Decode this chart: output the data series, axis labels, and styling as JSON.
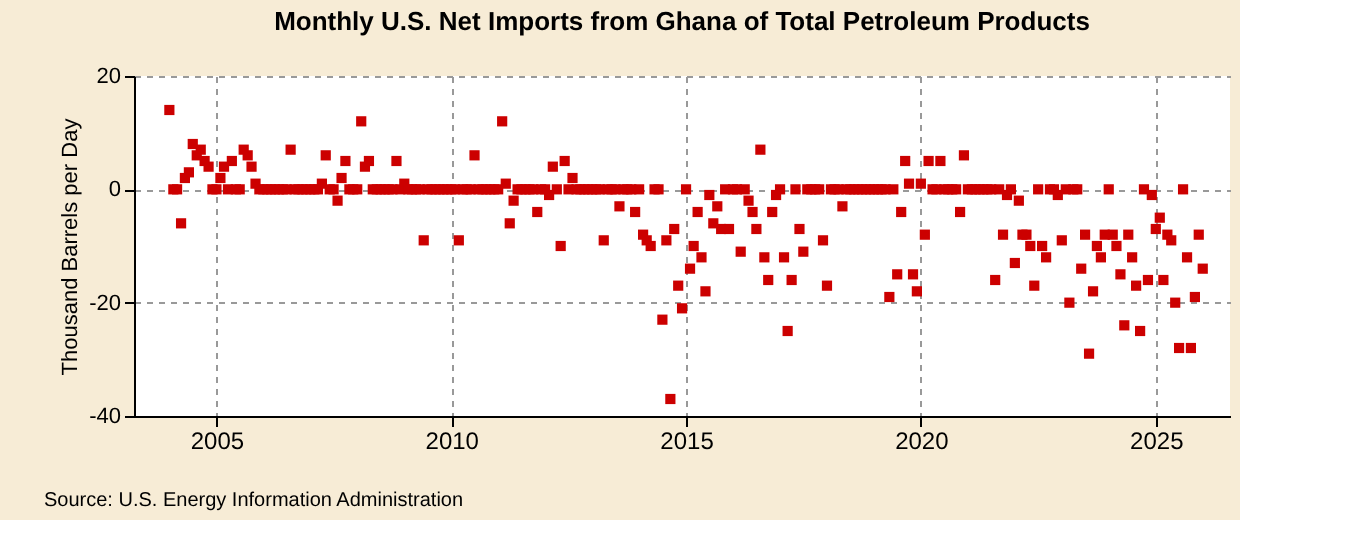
{
  "chart_data": {
    "type": "scatter",
    "title": "Monthly U.S. Net Imports from Ghana of Total Petroleum Products",
    "ylabel": "Thousand Barrels per Day",
    "annotations": [
      "Source: U.S. Energy Information Administration"
    ],
    "xlim": [
      "2003-04",
      "2026-08"
    ],
    "xticks": [
      {
        "value": "2005",
        "label": "2005"
      },
      {
        "value": "2010",
        "label": "2010"
      },
      {
        "value": "2015",
        "label": "2015"
      },
      {
        "value": "2020",
        "label": "2020"
      },
      {
        "value": "2025",
        "label": "2025"
      }
    ],
    "ylim": [
      -40,
      20
    ],
    "yticks": [
      -40,
      -20,
      0,
      20
    ],
    "grid": true,
    "marker": "square",
    "legend": false,
    "series": [
      {
        "color": "#cc0000",
        "x": [
          "2004-01",
          "2004-02",
          "2004-03",
          "2004-04",
          "2004-05",
          "2004-06",
          "2004-07",
          "2004-08",
          "2004-09",
          "2004-10",
          "2004-11",
          "2004-12",
          "2005-01",
          "2005-02",
          "2005-03",
          "2005-04",
          "2005-05",
          "2005-06",
          "2005-07",
          "2005-08",
          "2005-09",
          "2005-10",
          "2005-11",
          "2005-12",
          "2006-01",
          "2006-02",
          "2006-03",
          "2006-04",
          "2006-05",
          "2006-06",
          "2006-07",
          "2006-08",
          "2006-09",
          "2006-10",
          "2006-11",
          "2006-12",
          "2007-01",
          "2007-02",
          "2007-03",
          "2007-04",
          "2007-05",
          "2007-06",
          "2007-07",
          "2007-08",
          "2007-09",
          "2007-10",
          "2007-11",
          "2007-12",
          "2008-01",
          "2008-02",
          "2008-03",
          "2008-04",
          "2008-05",
          "2008-06",
          "2008-07",
          "2008-08",
          "2008-09",
          "2008-10",
          "2008-11",
          "2008-12",
          "2009-01",
          "2009-02",
          "2009-03",
          "2009-04",
          "2009-05",
          "2009-06",
          "2009-07",
          "2009-08",
          "2009-09",
          "2009-10",
          "2009-11",
          "2009-12",
          "2010-01",
          "2010-02",
          "2010-03",
          "2010-04",
          "2010-05",
          "2010-06",
          "2010-07",
          "2010-08",
          "2010-09",
          "2010-10",
          "2010-11",
          "2010-12",
          "2011-01",
          "2011-02",
          "2011-03",
          "2011-04",
          "2011-05",
          "2011-06",
          "2011-07",
          "2011-08",
          "2011-09",
          "2011-10",
          "2011-11",
          "2011-12",
          "2012-01",
          "2012-02",
          "2012-03",
          "2012-04",
          "2012-05",
          "2012-06",
          "2012-07",
          "2012-08",
          "2012-09",
          "2012-10",
          "2012-11",
          "2012-12",
          "2013-01",
          "2013-02",
          "2013-03",
          "2013-04",
          "2013-05",
          "2013-06",
          "2013-07",
          "2013-08",
          "2013-09",
          "2013-10",
          "2013-11",
          "2013-12",
          "2014-01",
          "2014-02",
          "2014-03",
          "2014-04",
          "2014-05",
          "2014-06",
          "2014-07",
          "2014-08",
          "2014-09",
          "2014-10",
          "2014-11",
          "2014-12",
          "2015-01",
          "2015-02",
          "2015-03",
          "2015-04",
          "2015-05",
          "2015-06",
          "2015-07",
          "2015-08",
          "2015-09",
          "2015-10",
          "2015-11",
          "2015-12",
          "2016-01",
          "2016-02",
          "2016-03",
          "2016-04",
          "2016-05",
          "2016-06",
          "2016-07",
          "2016-08",
          "2016-09",
          "2016-10",
          "2016-11",
          "2016-12",
          "2017-01",
          "2017-02",
          "2017-03",
          "2017-04",
          "2017-05",
          "2017-06",
          "2017-07",
          "2017-08",
          "2017-09",
          "2017-10",
          "2017-11",
          "2017-12",
          "2018-01",
          "2018-02",
          "2018-03",
          "2018-04",
          "2018-05",
          "2018-06",
          "2018-07",
          "2018-08",
          "2018-09",
          "2018-10",
          "2018-11",
          "2018-12",
          "2019-01",
          "2019-02",
          "2019-03",
          "2019-04",
          "2019-05",
          "2019-06",
          "2019-07",
          "2019-08",
          "2019-09",
          "2019-10",
          "2019-11",
          "2019-12",
          "2020-01",
          "2020-02",
          "2020-03",
          "2020-04",
          "2020-05",
          "2020-06",
          "2020-07",
          "2020-08",
          "2020-09",
          "2020-10",
          "2020-11",
          "2020-12",
          "2021-01",
          "2021-02",
          "2021-03",
          "2021-04",
          "2021-05",
          "2021-06",
          "2021-07",
          "2021-08",
          "2021-09",
          "2021-10",
          "2021-11",
          "2021-12",
          "2022-01",
          "2022-02",
          "2022-03",
          "2022-04",
          "2022-05",
          "2022-06",
          "2022-07",
          "2022-08",
          "2022-09",
          "2022-10",
          "2022-11",
          "2022-12",
          "2023-01",
          "2023-02",
          "2023-03",
          "2023-04",
          "2023-05",
          "2023-06",
          "2023-07",
          "2023-08",
          "2023-09",
          "2023-10",
          "2023-11",
          "2023-12",
          "2024-01",
          "2024-02",
          "2024-03",
          "2024-04",
          "2024-05",
          "2024-06",
          "2024-07",
          "2024-08",
          "2024-09",
          "2024-10",
          "2024-11",
          "2024-12",
          "2025-01",
          "2025-02",
          "2025-03",
          "2025-04",
          "2025-05",
          "2025-06",
          "2025-07",
          "2025-08",
          "2025-09",
          "2025-10",
          "2025-11",
          "2025-12",
          "2026-01"
        ],
        "values": [
          14,
          0,
          0,
          -6,
          2,
          3,
          8,
          6,
          7,
          5,
          4,
          0,
          0,
          2,
          4,
          0,
          5,
          0,
          0,
          7,
          6,
          4,
          1,
          0,
          0,
          0,
          0,
          0,
          0,
          0,
          0,
          7,
          0,
          0,
          0,
          0,
          0,
          0,
          0,
          1,
          6,
          0,
          0,
          -2,
          2,
          5,
          0,
          0,
          0,
          12,
          4,
          5,
          0,
          0,
          0,
          0,
          0,
          0,
          5,
          0,
          1,
          0,
          0,
          0,
          0,
          -9,
          0,
          0,
          0,
          0,
          0,
          0,
          0,
          0,
          -9,
          0,
          0,
          0,
          6,
          0,
          0,
          0,
          0,
          0,
          0,
          12,
          1,
          -6,
          -2,
          0,
          0,
          0,
          0,
          0,
          -4,
          0,
          0,
          -1,
          4,
          0,
          -10,
          5,
          0,
          2,
          0,
          0,
          0,
          0,
          0,
          0,
          0,
          -9,
          0,
          0,
          0,
          -3,
          0,
          0,
          0,
          -4,
          0,
          -8,
          -9,
          -10,
          0,
          0,
          -23,
          -9,
          -37,
          -7,
          -17,
          -21,
          0,
          -14,
          -10,
          -4,
          -12,
          -18,
          -1,
          -6,
          -3,
          -7,
          0,
          -7,
          0,
          0,
          -11,
          0,
          -2,
          -4,
          -7,
          7,
          -12,
          -16,
          -4,
          -1,
          0,
          -12,
          -25,
          -16,
          0,
          -7,
          -11,
          0,
          0,
          0,
          0,
          -9,
          -17,
          0,
          0,
          0,
          -3,
          0,
          0,
          0,
          0,
          0,
          0,
          0,
          0,
          0,
          0,
          0,
          -19,
          0,
          -15,
          -4,
          5,
          1,
          -15,
          -18,
          1,
          -8,
          5,
          0,
          0,
          5,
          0,
          0,
          0,
          0,
          -4,
          6,
          0,
          0,
          0,
          0,
          0,
          0,
          0,
          -16,
          0,
          -8,
          -1,
          0,
          -13,
          -2,
          -8,
          -8,
          -10,
          -17,
          0,
          -10,
          -12,
          0,
          0,
          -1,
          -9,
          0,
          -20,
          0,
          0,
          -14,
          -8,
          -29,
          -18,
          -10,
          -12,
          -8,
          0,
          -8,
          -10,
          -15,
          -24,
          -8,
          -12,
          -17,
          -25,
          0,
          -16,
          -1,
          -7,
          -5,
          -16,
          -8,
          -9,
          -20,
          -28,
          0,
          -12,
          -28,
          -19,
          -8,
          -14
        ]
      }
    ]
  }
}
